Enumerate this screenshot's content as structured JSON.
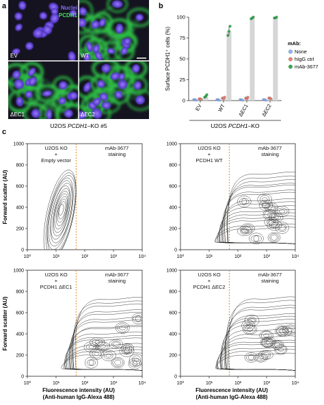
{
  "panel_letters": [
    "a",
    "b",
    "c"
  ],
  "panel_a": {
    "legend": {
      "nuclei": "Nuclei",
      "pcdh1": "PCDH1"
    },
    "colors": {
      "nuclei": "#7a5cff",
      "pcdh1": "#33d14a",
      "background": "#15131f"
    },
    "images": [
      {
        "label": "EV"
      },
      {
        "label": "WT"
      },
      {
        "label": "ΔEC1"
      },
      {
        "label": "ΔEC2"
      }
    ],
    "caption_pre": "U2OS ",
    "caption_gene": "PCDH1",
    "caption_post": "–KO #5"
  },
  "panel_c": {
    "ylabel": "Forward scatter (AU)",
    "xlabel_line1": "Fluorescence intensity (AU)",
    "xlabel_line2": "(Anti-human IgG-Alexa 488)",
    "yticks": [
      "0",
      "200",
      "400",
      "600",
      "800",
      "1000"
    ],
    "xticks": [
      "10⁰",
      "10¹",
      "10²",
      "10³",
      "10⁴"
    ],
    "plots": [
      {
        "left_text": [
          "U2OS KO",
          "+",
          "Empty vector"
        ],
        "right_text": [
          "mAb-3677",
          "staining"
        ]
      },
      {
        "left_text": [
          "U2OS KO",
          "+",
          "PCDH1 WT"
        ],
        "right_text": [
          "mAb-3677",
          "staining"
        ]
      },
      {
        "left_text": [
          "U2OS KO",
          "+",
          "PCDH1 ΔEC1"
        ],
        "right_text": [
          "mAb-3677",
          "staining"
        ]
      },
      {
        "left_text": [
          "U2OS KO",
          "+",
          "PCDH1 ΔEC2"
        ],
        "right_text": [
          "mAb-3677",
          "staining"
        ]
      }
    ],
    "gate_color": "#e08a1e"
  },
  "chart_data": {
    "type": "bar",
    "ylabel": "Surface PCDH1⁺ cells (%)",
    "xlabel_pre": "U2OS ",
    "xlabel_gene": "PCDH1",
    "xlabel_post": "–KO",
    "ylim": [
      0,
      100
    ],
    "yticks": [
      "0",
      "25",
      "50",
      "75",
      "100"
    ],
    "categories": [
      "EV",
      "WT",
      "ΔEC1",
      "ΔEC2"
    ],
    "legend_title": "mAb:",
    "series": [
      {
        "name": "None",
        "color": "#8ab4ff",
        "values": [
          1,
          1,
          1,
          1
        ],
        "points": [
          [
            1,
            1,
            0.5
          ],
          [
            1,
            1,
            0.5
          ],
          [
            1,
            1,
            0.5
          ],
          [
            1,
            1,
            0.5
          ]
        ]
      },
      {
        "name": "hIgG ctrl",
        "color": "#f08070",
        "values": [
          2,
          3,
          3,
          3
        ],
        "points": [
          [
            2,
            2,
            1.5
          ],
          [
            3,
            2,
            4
          ],
          [
            3,
            2,
            4
          ],
          [
            3,
            3,
            2
          ]
        ]
      },
      {
        "name": "mAb-3677",
        "color": "#2bb24c",
        "values": [
          5,
          83,
          99,
          99
        ],
        "points": [
          [
            4,
            5,
            7
          ],
          [
            78,
            83,
            89
          ],
          [
            98,
            99,
            100
          ],
          [
            99,
            99,
            100
          ]
        ]
      }
    ]
  }
}
